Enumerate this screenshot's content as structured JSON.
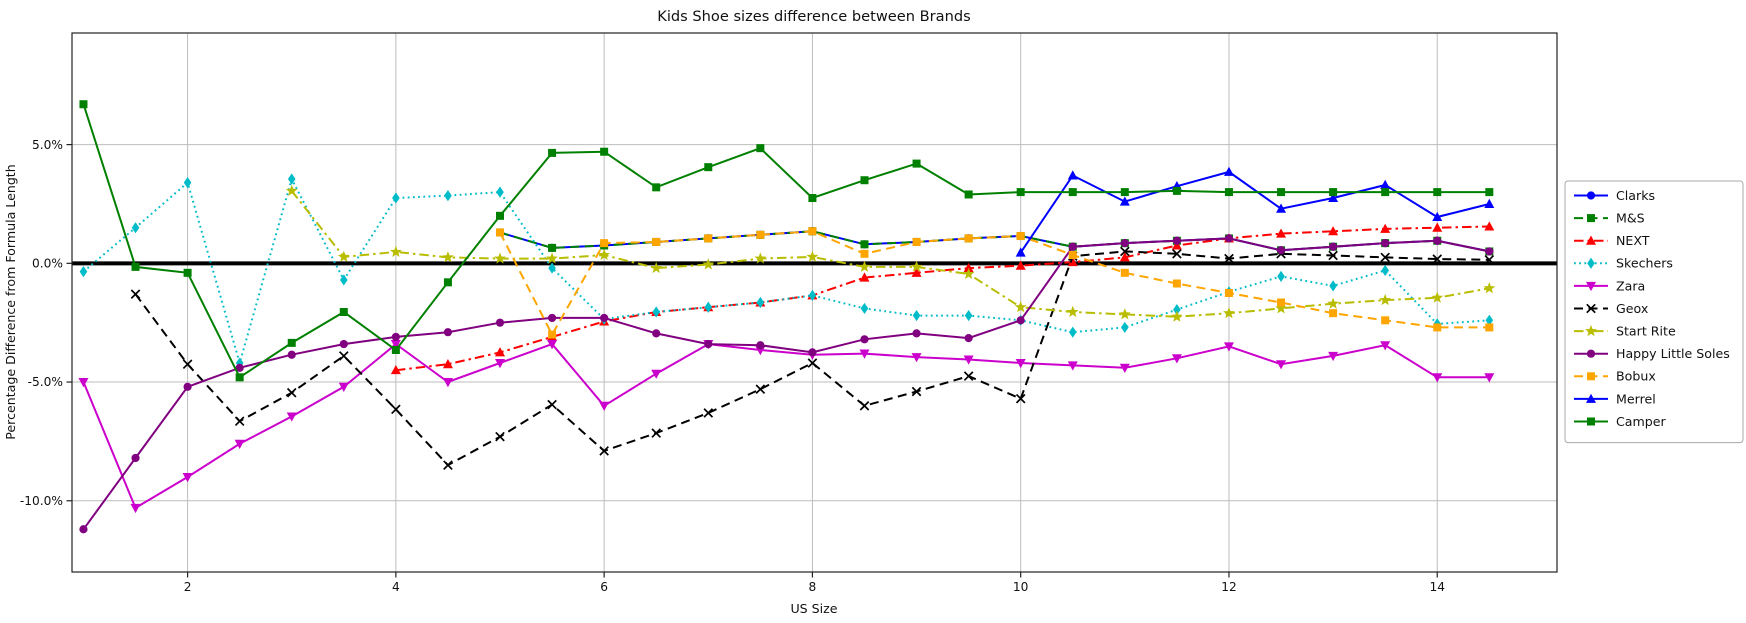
{
  "figure": {
    "background": "#ffffff"
  },
  "chart_data": {
    "type": "line",
    "title": "Kids Shoe sizes difference between Brands",
    "xlabel": "US Size",
    "ylabel": "Percentage Difference from Formula Length",
    "x_ticks": [
      2,
      4,
      6,
      8,
      10,
      12,
      14
    ],
    "y_ticks": [
      {
        "value": 5,
        "label": "5.0%"
      },
      {
        "value": 0,
        "label": "0.0%"
      },
      {
        "value": -5,
        "label": "-5.0%"
      },
      {
        "value": -10,
        "label": "-10.0%"
      }
    ],
    "xlim": [
      0.89,
      15.15
    ],
    "ylim": [
      -13.0,
      9.7
    ],
    "grid": true,
    "grid_color": "#bdbdbd",
    "zero_line": {
      "value": 0,
      "color": "#000000",
      "width": 4
    },
    "legend_position": "right",
    "x_step": 0.5,
    "series": [
      {
        "name": "Clarks",
        "color": "#0000ff",
        "line_style": "solid",
        "marker": "circle",
        "x_start": 5,
        "y": [
          1.3,
          0.65,
          0.75,
          0.9,
          1.05,
          1.2,
          1.35,
          0.8,
          0.9,
          1.05,
          1.15,
          0.7,
          0.85,
          0.95,
          1.05,
          0.55,
          0.7,
          0.85,
          0.95,
          0.5
        ]
      },
      {
        "name": "M&S",
        "color": "#008000",
        "line_style": "dashed",
        "marker": "square",
        "x_start": 5,
        "y": [
          1.3,
          0.65,
          0.75,
          0.9,
          1.05,
          1.2,
          1.35,
          0.8,
          0.9,
          1.05,
          1.15,
          0.7,
          0.85,
          0.95,
          1.05,
          0.55,
          0.7,
          0.85,
          0.95,
          0.5
        ]
      },
      {
        "name": "NEXT",
        "color": "#ff0000",
        "line_style": "dashdot",
        "marker": "triangle-up",
        "x_start": 4,
        "y": [
          -4.5,
          -4.25,
          -3.75,
          -3.1,
          -2.45,
          -2.05,
          -1.85,
          -1.65,
          -1.35,
          -0.6,
          -0.4,
          -0.2,
          -0.1,
          0.05,
          0.25,
          0.75,
          1.05,
          1.25,
          1.35,
          1.45,
          1.5,
          1.55
        ]
      },
      {
        "name": "Skechers",
        "color": "#00bcc8",
        "line_style": "dotted",
        "marker": "diamond",
        "x_start": 1,
        "y": [
          -0.35,
          1.5,
          3.4,
          -4.2,
          3.55,
          -0.7,
          2.75,
          2.85,
          3.0,
          -0.2,
          -2.35,
          -2.05,
          -1.85,
          -1.65,
          -1.35,
          -1.9,
          -2.2,
          -2.2,
          -2.4,
          -2.9,
          -2.7,
          -1.95,
          -1.2,
          -0.55,
          -0.95,
          -0.3,
          -2.55,
          -2.4
        ]
      },
      {
        "name": "Zara",
        "color": "#cc00cc",
        "line_style": "solid",
        "marker": "triangle-down",
        "x_start": 1,
        "y": [
          -5.0,
          -10.3,
          -9.0,
          -7.6,
          -6.45,
          -5.2,
          -3.4,
          -5.0,
          -4.2,
          -3.4,
          -6.0,
          -4.65,
          -3.4,
          -3.65,
          -3.85,
          -3.8,
          -3.95,
          -4.05,
          -4.2,
          -4.3,
          -4.4,
          -4.0,
          -3.5,
          -4.25,
          -3.9,
          -3.45,
          -4.8,
          -4.8
        ]
      },
      {
        "name": "Geox",
        "color": "#000000",
        "line_style": "dashed",
        "marker": "x",
        "x_start": 1.5,
        "y": [
          -1.3,
          -4.25,
          -6.65,
          -5.45,
          -3.9,
          -6.15,
          -8.5,
          -7.3,
          -5.95,
          -7.9,
          -7.15,
          -6.3,
          -5.3,
          -4.2,
          -6.0,
          -5.4,
          -4.75,
          -5.7,
          0.3,
          0.5,
          0.4,
          0.2,
          0.4,
          0.33,
          0.25,
          0.18,
          0.15
        ]
      },
      {
        "name": "Start Rite",
        "color": "#b9bd00",
        "line_style": "dashdot",
        "marker": "star",
        "x_start": 3,
        "y": [
          3.05,
          0.27,
          0.48,
          0.25,
          0.2,
          0.2,
          0.35,
          -0.2,
          -0.05,
          0.2,
          0.27,
          -0.15,
          -0.15,
          -0.45,
          -1.85,
          -2.05,
          -2.15,
          -2.25,
          -2.1,
          -1.9,
          -1.7,
          -1.55,
          -1.45,
          -1.05
        ]
      },
      {
        "name": "Happy Little Soles",
        "color": "#800080",
        "line_style": "solid",
        "marker": "circle",
        "x_start": 1,
        "y": [
          -11.2,
          -8.2,
          -5.2,
          -4.4,
          -3.85,
          -3.4,
          -3.1,
          -2.9,
          -2.5,
          -2.3,
          -2.3,
          -2.95,
          -3.4,
          -3.45,
          -3.75,
          -3.2,
          -2.95,
          -3.15,
          -2.4,
          0.7,
          0.85,
          0.95,
          1.05,
          0.55,
          0.7,
          0.85,
          0.95,
          0.5
        ]
      },
      {
        "name": "Bobux",
        "color": "#ffa500",
        "line_style": "dashed",
        "marker": "square",
        "x_start": 5,
        "y": [
          1.3,
          -3.0,
          0.85,
          0.9,
          1.05,
          1.2,
          1.35,
          0.4,
          0.9,
          1.05,
          1.15,
          0.35,
          -0.4,
          -0.85,
          -1.25,
          -1.65,
          -2.1,
          -2.4,
          -2.7,
          -2.7
        ]
      },
      {
        "name": "Merrel",
        "color": "#0000ff",
        "line_style": "solid",
        "marker": "triangle-up",
        "x_start": 10,
        "y": [
          0.45,
          3.7,
          2.6,
          3.25,
          3.85,
          2.3,
          2.75,
          3.3,
          1.95,
          2.5
        ]
      },
      {
        "name": "Camper",
        "color": "#008000",
        "line_style": "solid",
        "marker": "square",
        "x_start": 1,
        "y": [
          6.7,
          -0.15,
          -0.4,
          -4.8,
          -3.35,
          -2.05,
          -3.65,
          -0.8,
          2.0,
          4.65,
          4.7,
          3.2,
          4.05,
          4.85,
          2.75,
          3.5,
          4.2,
          2.9,
          3.0,
          3.0,
          3.0,
          3.05,
          3.0,
          3.0,
          3.0,
          3.0,
          3.0,
          3.0
        ]
      }
    ]
  }
}
